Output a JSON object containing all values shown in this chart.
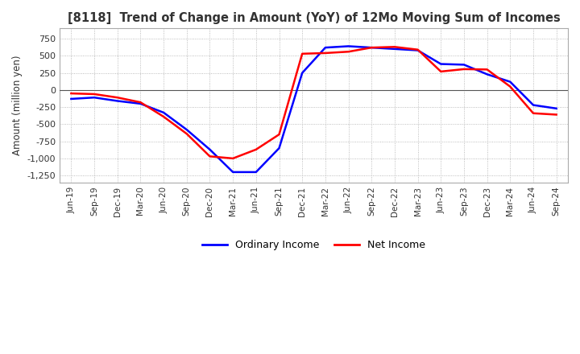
{
  "title": "[8118]  Trend of Change in Amount (YoY) of 12Mo Moving Sum of Incomes",
  "ylabel": "Amount (million yen)",
  "ylim": [
    -1350,
    900
  ],
  "yticks": [
    750,
    500,
    250,
    0,
    -250,
    -500,
    -750,
    -1000,
    -1250
  ],
  "background_color": "#ffffff",
  "plot_bg_color": "#ffffff",
  "grid_color": "#aaaaaa",
  "ordinary_income_color": "#0000ff",
  "net_income_color": "#ff0000",
  "x_labels": [
    "Jun-19",
    "Sep-19",
    "Dec-19",
    "Mar-20",
    "Jun-20",
    "Sep-20",
    "Dec-20",
    "Mar-21",
    "Jun-21",
    "Sep-21",
    "Dec-21",
    "Mar-22",
    "Jun-22",
    "Sep-22",
    "Dec-22",
    "Mar-23",
    "Jun-23",
    "Sep-23",
    "Dec-23",
    "Mar-24",
    "Jun-24",
    "Sep-24"
  ],
  "ordinary_income": [
    -130,
    -110,
    -160,
    -200,
    -330,
    -580,
    -870,
    -1200,
    -1200,
    -850,
    250,
    620,
    640,
    620,
    600,
    580,
    380,
    370,
    230,
    120,
    -220,
    -270
  ],
  "net_income": [
    -50,
    -60,
    -110,
    -180,
    -390,
    -640,
    -970,
    -1000,
    -870,
    -650,
    530,
    540,
    560,
    620,
    630,
    590,
    270,
    305,
    300,
    50,
    -340,
    -360
  ]
}
